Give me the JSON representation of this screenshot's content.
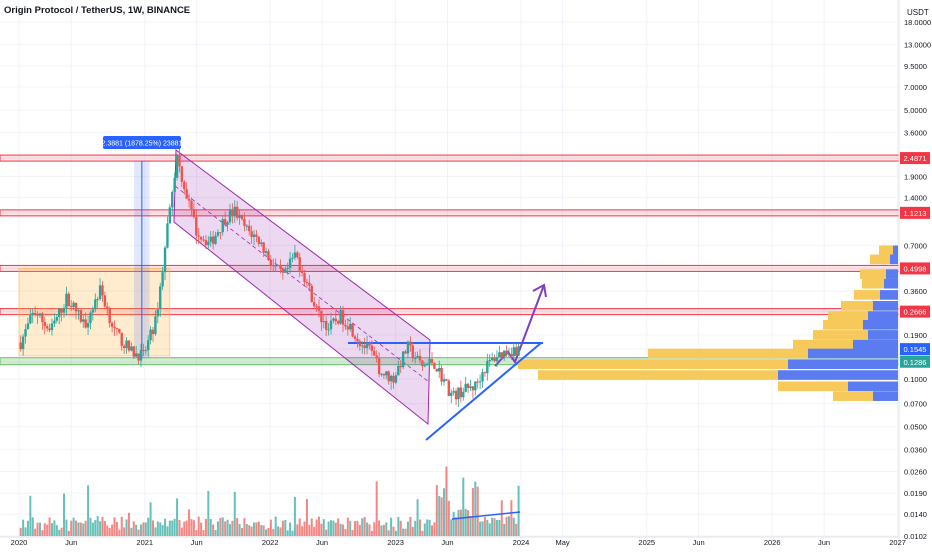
{
  "header": {
    "title": "Origin Protocol / TetherUS, 1W, BINANCE"
  },
  "currency": "USDT",
  "chart_data": {
    "type": "candlestick",
    "title": "Origin Protocol / TetherUS, 1W, BINANCE",
    "scale": "log",
    "ylim": [
      0.0102,
      18.0
    ],
    "y_ticks": [
      "18.0000",
      "13.0000",
      "9.5000",
      "7.0000",
      "5.0000",
      "3.6000",
      "2.4871",
      "1.9000",
      "1.4000",
      "1.1213",
      "0.7000",
      "0.4998",
      "0.3600",
      "0.2666",
      "0.1900",
      "0.1545",
      "0.1286",
      "0.1000",
      "0.0700",
      "0.0500",
      "0.0360",
      "0.0260",
      "0.0190",
      "0.0140",
      "0.0102"
    ],
    "y_tick_values": [
      18.0,
      13.0,
      9.5,
      7.0,
      5.0,
      3.6,
      2.4871,
      1.9,
      1.4,
      1.1213,
      0.7,
      0.4998,
      0.36,
      0.2666,
      0.19,
      0.1545,
      0.1286,
      0.1,
      0.07,
      0.05,
      0.036,
      0.026,
      0.019,
      0.014,
      0.0102
    ],
    "x_ticks": [
      {
        "label": "2020",
        "date": "2020-01-01"
      },
      {
        "label": "Jun",
        "date": "2020-06-01"
      },
      {
        "label": "2021",
        "date": "2021-01-01"
      },
      {
        "label": "Jun",
        "date": "2021-06-01"
      },
      {
        "label": "2022",
        "date": "2022-01-01"
      },
      {
        "label": "Jun",
        "date": "2022-06-01"
      },
      {
        "label": "2023",
        "date": "2023-01-01"
      },
      {
        "label": "Jun",
        "date": "2023-06-01"
      },
      {
        "label": "2024",
        "date": "2024-01-01"
      },
      {
        "label": "May",
        "date": "2024-05-01"
      },
      {
        "label": "2025",
        "date": "2025-01-01"
      },
      {
        "label": "Jun",
        "date": "2025-06-01"
      },
      {
        "label": "2026",
        "date": "2026-01-01"
      },
      {
        "label": "Jun",
        "date": "2026-06-01"
      },
      {
        "label": "2027",
        "date": "2027-01-01"
      }
    ],
    "price_labels": [
      {
        "text": "2.4871",
        "value": 2.4871,
        "color": "#f23645"
      },
      {
        "text": "1.1213",
        "value": 1.1213,
        "color": "#f23645"
      },
      {
        "text": "0.4998",
        "value": 0.4998,
        "color": "#f23645"
      },
      {
        "text": "0.2666",
        "value": 0.2666,
        "color": "#f23645"
      },
      {
        "text": "0.1545",
        "value": 0.1545,
        "color": "#2962ff"
      },
      {
        "text": "0.1286",
        "value": 0.1286,
        "color": "#26a69a"
      }
    ],
    "resistance_zones": [
      2.4871,
      1.1213,
      0.4998,
      0.2666
    ],
    "support_zone": 0.1286,
    "measure_label": "2.3881 (1878.25%) 23881",
    "series": [
      {
        "name": "price_path",
        "points": [
          [
            "2020-01-06",
            0.17
          ],
          [
            "2020-02-15",
            0.27
          ],
          [
            "2020-04-01",
            0.2
          ],
          [
            "2020-05-20",
            0.33
          ],
          [
            "2020-07-10",
            0.22
          ],
          [
            "2020-08-25",
            0.37
          ],
          [
            "2020-10-05",
            0.2
          ],
          [
            "2020-11-20",
            0.15
          ],
          [
            "2020-12-28",
            0.14
          ],
          [
            "2021-02-01",
            0.23
          ],
          [
            "2021-02-25",
            0.55
          ],
          [
            "2021-03-15",
            1.3
          ],
          [
            "2021-04-05",
            2.49
          ],
          [
            "2021-05-01",
            1.5
          ],
          [
            "2021-06-01",
            0.85
          ],
          [
            "2021-07-10",
            0.72
          ],
          [
            "2021-08-25",
            1.05
          ],
          [
            "2021-09-20",
            1.15
          ],
          [
            "2021-10-20",
            0.9
          ],
          [
            "2021-11-30",
            0.75
          ],
          [
            "2022-01-10",
            0.52
          ],
          [
            "2022-02-10",
            0.44
          ],
          [
            "2022-03-15",
            0.62
          ],
          [
            "2022-04-10",
            0.45
          ],
          [
            "2022-05-20",
            0.26
          ],
          [
            "2022-06-20",
            0.21
          ],
          [
            "2022-07-25",
            0.25
          ],
          [
            "2022-08-20",
            0.22
          ],
          [
            "2022-09-20",
            0.17
          ],
          [
            "2022-10-20",
            0.15
          ],
          [
            "2022-11-20",
            0.11
          ],
          [
            "2022-12-25",
            0.1
          ],
          [
            "2023-02-05",
            0.16
          ],
          [
            "2023-03-20",
            0.12
          ],
          [
            "2023-04-20",
            0.13
          ],
          [
            "2023-05-20",
            0.1
          ],
          [
            "2023-06-15",
            0.078
          ],
          [
            "2023-07-15",
            0.085
          ],
          [
            "2023-08-20",
            0.09
          ],
          [
            "2023-09-20",
            0.12
          ],
          [
            "2023-10-20",
            0.14
          ],
          [
            "2023-11-20",
            0.15
          ],
          [
            "2023-12-25",
            0.155
          ]
        ]
      }
    ],
    "volume_profile": [
      {
        "price": 0.65,
        "buy": 14,
        "sell": 5
      },
      {
        "price": 0.57,
        "buy": 20,
        "sell": 8
      },
      {
        "price": 0.46,
        "buy": 26,
        "sell": 12
      },
      {
        "price": 0.4,
        "buy": 22,
        "sell": 14
      },
      {
        "price": 0.34,
        "buy": 26,
        "sell": 18
      },
      {
        "price": 0.29,
        "buy": 32,
        "sell": 25
      },
      {
        "price": 0.25,
        "buy": 40,
        "sell": 30
      },
      {
        "price": 0.22,
        "buy": 40,
        "sell": 35
      },
      {
        "price": 0.19,
        "buy": 55,
        "sell": 30
      },
      {
        "price": 0.165,
        "buy": 60,
        "sell": 45
      },
      {
        "price": 0.145,
        "buy": 160,
        "sell": 90
      },
      {
        "price": 0.124,
        "buy": 270,
        "sell": 110
      },
      {
        "price": 0.106,
        "buy": 240,
        "sell": 120
      },
      {
        "price": 0.09,
        "buy": 70,
        "sell": 50
      },
      {
        "price": 0.078,
        "buy": 40,
        "sell": 25
      }
    ]
  }
}
